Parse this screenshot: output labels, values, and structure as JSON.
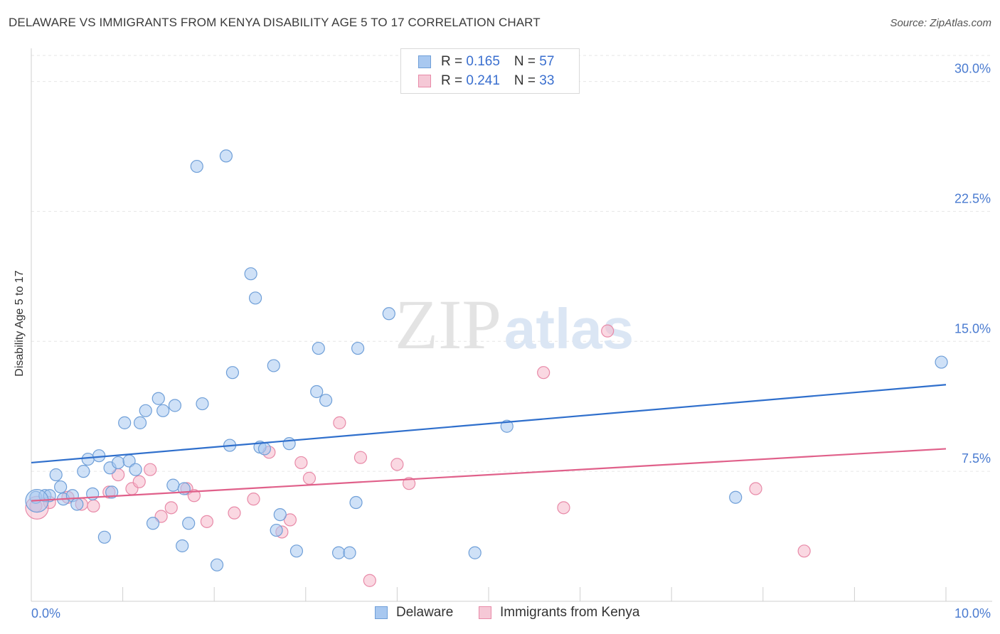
{
  "header": {
    "title": "DELAWARE VS IMMIGRANTS FROM KENYA DISABILITY AGE 5 TO 17 CORRELATION CHART",
    "source": "Source: ZipAtlas.com"
  },
  "watermark": {
    "zip": "ZIP",
    "atlas": "atlas"
  },
  "legend": {
    "delaware": {
      "r_label": "R = ",
      "r_value": "0.165",
      "n_label": "N = ",
      "n_value": "57"
    },
    "kenya": {
      "r_label": "R = ",
      "r_value": "0.241",
      "n_label": "N = ",
      "n_value": "33"
    }
  },
  "colors": {
    "delaware_fill": "#a8c8f0",
    "delaware_stroke": "#6f9fd8",
    "delaware_line": "#2f6fcc",
    "kenya_fill": "#f5b8cb",
    "kenya_stroke": "#e88aa8",
    "kenya_line": "#e0608a",
    "axis_text": "#4a7bd0"
  },
  "chart_data": {
    "type": "scatter",
    "title": "DELAWARE VS IMMIGRANTS FROM KENYA DISABILITY AGE 5 TO 17 CORRELATION CHART",
    "xlabel": "",
    "ylabel": "Disability Age 5 to 17",
    "xlim": [
      0,
      10
    ],
    "ylim": [
      0,
      31.5
    ],
    "x_tick_labels": [
      "0.0%",
      "10.0%"
    ],
    "y_ticks": [
      7.5,
      15.0,
      22.5,
      30.0
    ],
    "y_tick_labels": [
      "7.5%",
      "15.0%",
      "22.5%",
      "30.0%"
    ],
    "grid": true,
    "legend_position": "top-center",
    "series": [
      {
        "name": "Delaware",
        "r": 0.165,
        "n": 57,
        "trend": {
          "x": [
            0,
            10
          ],
          "y": [
            8.0,
            12.5
          ]
        },
        "points": [
          {
            "x": 0.05,
            "y": 6.0
          },
          {
            "x": 0.15,
            "y": 6.1
          },
          {
            "x": 0.2,
            "y": 6.1
          },
          {
            "x": 0.27,
            "y": 7.3
          },
          {
            "x": 0.32,
            "y": 6.6
          },
          {
            "x": 0.35,
            "y": 5.9
          },
          {
            "x": 0.45,
            "y": 6.1
          },
          {
            "x": 0.5,
            "y": 5.6
          },
          {
            "x": 0.57,
            "y": 7.5
          },
          {
            "x": 0.62,
            "y": 8.2
          },
          {
            "x": 0.67,
            "y": 6.2
          },
          {
            "x": 0.74,
            "y": 8.4
          },
          {
            "x": 0.8,
            "y": 3.7
          },
          {
            "x": 0.86,
            "y": 7.7
          },
          {
            "x": 0.88,
            "y": 6.3
          },
          {
            "x": 0.95,
            "y": 8.0
          },
          {
            "x": 1.02,
            "y": 10.3
          },
          {
            "x": 1.07,
            "y": 8.1
          },
          {
            "x": 1.14,
            "y": 7.6
          },
          {
            "x": 1.19,
            "y": 10.3
          },
          {
            "x": 1.25,
            "y": 11.0
          },
          {
            "x": 1.33,
            "y": 4.5
          },
          {
            "x": 1.39,
            "y": 11.7
          },
          {
            "x": 1.44,
            "y": 11.0
          },
          {
            "x": 1.57,
            "y": 11.3
          },
          {
            "x": 1.55,
            "y": 6.7
          },
          {
            "x": 1.67,
            "y": 6.5
          },
          {
            "x": 1.65,
            "y": 3.2
          },
          {
            "x": 1.72,
            "y": 4.5
          },
          {
            "x": 1.81,
            "y": 25.1
          },
          {
            "x": 1.87,
            "y": 11.4
          },
          {
            "x": 2.03,
            "y": 2.1
          },
          {
            "x": 2.13,
            "y": 25.7
          },
          {
            "x": 2.17,
            "y": 9.0
          },
          {
            "x": 2.2,
            "y": 13.2
          },
          {
            "x": 2.4,
            "y": 18.9
          },
          {
            "x": 2.45,
            "y": 17.5
          },
          {
            "x": 2.5,
            "y": 8.9
          },
          {
            "x": 2.55,
            "y": 8.8
          },
          {
            "x": 2.65,
            "y": 13.6
          },
          {
            "x": 2.68,
            "y": 4.1
          },
          {
            "x": 2.72,
            "y": 5.0
          },
          {
            "x": 2.82,
            "y": 9.1
          },
          {
            "x": 2.9,
            "y": 2.9
          },
          {
            "x": 3.12,
            "y": 12.1
          },
          {
            "x": 3.14,
            "y": 14.6
          },
          {
            "x": 3.22,
            "y": 11.6
          },
          {
            "x": 3.36,
            "y": 2.8
          },
          {
            "x": 3.48,
            "y": 2.8
          },
          {
            "x": 3.55,
            "y": 5.7
          },
          {
            "x": 3.57,
            "y": 14.6
          },
          {
            "x": 3.91,
            "y": 16.6
          },
          {
            "x": 4.85,
            "y": 2.8
          },
          {
            "x": 5.2,
            "y": 10.1
          },
          {
            "x": 7.7,
            "y": 6.0
          },
          {
            "x": 9.95,
            "y": 13.8
          },
          {
            "x": 0.0,
            "y": 5.8
          }
        ]
      },
      {
        "name": "Immigrants from Kenya",
        "r": 0.241,
        "n": 33,
        "trend": {
          "x": [
            0,
            10
          ],
          "y": [
            5.8,
            8.8
          ]
        },
        "points": [
          {
            "x": 0.05,
            "y": 5.5
          },
          {
            "x": 0.2,
            "y": 5.7
          },
          {
            "x": 0.4,
            "y": 6.0
          },
          {
            "x": 0.55,
            "y": 5.6
          },
          {
            "x": 0.68,
            "y": 5.5
          },
          {
            "x": 0.85,
            "y": 6.3
          },
          {
            "x": 0.95,
            "y": 7.3
          },
          {
            "x": 1.1,
            "y": 6.5
          },
          {
            "x": 1.18,
            "y": 6.9
          },
          {
            "x": 1.3,
            "y": 7.6
          },
          {
            "x": 1.42,
            "y": 4.9
          },
          {
            "x": 1.53,
            "y": 5.4
          },
          {
            "x": 1.7,
            "y": 6.5
          },
          {
            "x": 1.78,
            "y": 6.1
          },
          {
            "x": 1.92,
            "y": 4.6
          },
          {
            "x": 2.22,
            "y": 5.1
          },
          {
            "x": 2.43,
            "y": 5.9
          },
          {
            "x": 2.6,
            "y": 8.6
          },
          {
            "x": 2.74,
            "y": 4.0
          },
          {
            "x": 2.83,
            "y": 4.7
          },
          {
            "x": 2.95,
            "y": 8.0
          },
          {
            "x": 3.04,
            "y": 7.1
          },
          {
            "x": 3.37,
            "y": 10.3
          },
          {
            "x": 3.6,
            "y": 8.3
          },
          {
            "x": 3.7,
            "y": 1.2
          },
          {
            "x": 4.0,
            "y": 7.9
          },
          {
            "x": 4.13,
            "y": 6.8
          },
          {
            "x": 5.6,
            "y": 13.2
          },
          {
            "x": 5.82,
            "y": 5.4
          },
          {
            "x": 6.3,
            "y": 15.6
          },
          {
            "x": 7.92,
            "y": 6.5
          },
          {
            "x": 8.45,
            "y": 2.9
          },
          {
            "x": 0.0,
            "y": 5.4
          }
        ]
      }
    ]
  },
  "bottom_legend": {
    "delaware_label": "Delaware",
    "kenya_label": "Immigrants from Kenya"
  }
}
